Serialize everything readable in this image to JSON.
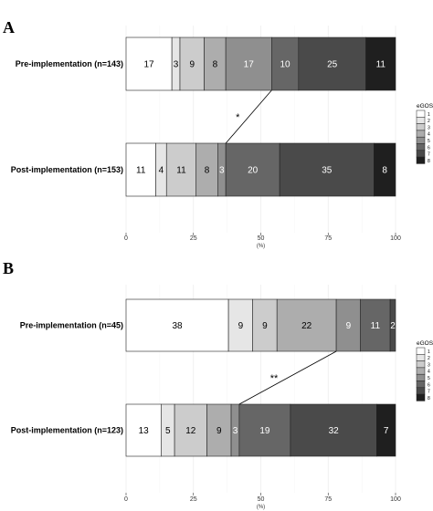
{
  "legend": {
    "title": "eGOS",
    "items": [
      "1",
      "2",
      "3",
      "4",
      "5",
      "6",
      "7",
      "8"
    ],
    "colors": [
      "#ffffff",
      "#e6e6e6",
      "#cccccc",
      "#adadad",
      "#8f8f8f",
      "#666666",
      "#4a4a4a",
      "#1f1f1f"
    ]
  },
  "chart_data": [
    {
      "type": "bar",
      "orientation": "horizontal",
      "stacked": true,
      "panel_label": "A",
      "categories": [
        "Pre-implementation (n=143)",
        "Post-implementation (n=153)"
      ],
      "series": [
        {
          "name": "1",
          "values": [
            17,
            11
          ]
        },
        {
          "name": "2",
          "values": [
            3,
            4
          ]
        },
        {
          "name": "3",
          "values": [
            9,
            11
          ]
        },
        {
          "name": "4",
          "values": [
            8,
            8
          ]
        },
        {
          "name": "5",
          "values": [
            17,
            3
          ]
        },
        {
          "name": "6",
          "values": [
            10,
            20
          ]
        },
        {
          "name": "7",
          "values": [
            25,
            35
          ]
        },
        {
          "name": "8",
          "values": [
            11,
            8
          ]
        }
      ],
      "xlim": [
        0,
        100
      ],
      "xticks": [
        "0",
        "25",
        "50",
        "75",
        "100"
      ],
      "xlabel": "(%)",
      "grid": true,
      "significance": "*",
      "connector": {
        "from_cumulative": 54,
        "to_cumulative": 37
      }
    },
    {
      "type": "bar",
      "orientation": "horizontal",
      "stacked": true,
      "panel_label": "B",
      "categories": [
        "Pre-implementation (n=45)",
        "Post-implementation (n=123)"
      ],
      "series": [
        {
          "name": "1",
          "values": [
            38,
            13
          ]
        },
        {
          "name": "2",
          "values": [
            9,
            5
          ]
        },
        {
          "name": "3",
          "values": [
            9,
            12
          ]
        },
        {
          "name": "4",
          "values": [
            22,
            9
          ]
        },
        {
          "name": "5",
          "values": [
            9,
            3
          ]
        },
        {
          "name": "6",
          "values": [
            11,
            19
          ]
        },
        {
          "name": "7",
          "values": [
            2,
            32
          ]
        },
        {
          "name": "8",
          "values": [
            0,
            7
          ]
        }
      ],
      "segment_labels": [
        [
          "38",
          "9",
          "9",
          "22",
          "9",
          "11",
          "2",
          ""
        ],
        [
          "13",
          "5",
          "12",
          "9",
          "3",
          "19",
          "32",
          "7"
        ]
      ],
      "xlim": [
        0,
        100
      ],
      "xticks": [
        "0",
        "25",
        "50",
        "75",
        "100"
      ],
      "xlabel": "(%)",
      "grid": true,
      "significance": "**",
      "connector": {
        "from_cumulative": 78,
        "to_cumulative": 42
      }
    }
  ]
}
